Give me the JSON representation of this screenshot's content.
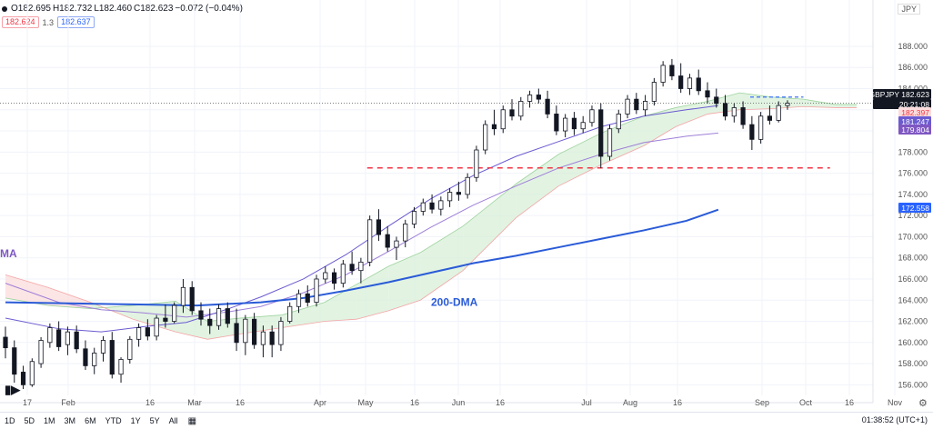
{
  "header": {
    "open": "O182.695",
    "high": "H182.732",
    "low": "L182.460",
    "close": "C182.623",
    "change": "−0.072 (−0.04%)",
    "currency": "JPY"
  },
  "indicators": {
    "red_value": "182.624",
    "mult": "1.3",
    "blue_value": "182.637"
  },
  "toolbar": {
    "timeframes": [
      "1D",
      "5D",
      "1M",
      "3M",
      "6M",
      "YTD",
      "1Y",
      "5Y",
      "All"
    ],
    "clock": "01:38:52 (UTC+1)"
  },
  "colors": {
    "up": "#ffffff",
    "down": "#131722",
    "cloud_bull": "#d8efd8",
    "cloud_bear": "#fbdcdc",
    "dma200": "#2a5bd7",
    "ma_fast": "#6b5bd0",
    "ma_slow": "#9e7fd8",
    "support": "#f23645"
  },
  "chart_data": {
    "type": "candlestick",
    "symbol": "GBPJPY",
    "y_ticks": [
      156,
      158,
      160,
      162,
      164,
      166,
      168,
      170,
      172,
      174,
      176,
      178,
      180,
      182,
      184,
      186,
      188
    ],
    "ylim": [
      155.0,
      189.8
    ],
    "x_labels": [
      "17",
      "Feb",
      "16",
      "Mar",
      "16",
      "Apr",
      "May",
      "16",
      "Jun",
      "16",
      "Jul",
      "Aug",
      "16",
      "Sep",
      "Oct",
      "16",
      "Nov",
      "16"
    ],
    "price_tags": [
      {
        "label": "GBPJPY",
        "value": "182.623"
      },
      {
        "label": "timer",
        "value": "20:21:08"
      },
      {
        "label": "ma_fast",
        "value": "182.397"
      },
      {
        "label": "ma_mid",
        "value": "181.247"
      },
      {
        "label": "ma_slow",
        "value": "179.804"
      },
      {
        "label": "dma200",
        "value": "172.558"
      }
    ],
    "annotations": [
      {
        "text": "200-DMA",
        "at_price": 163.8
      },
      {
        "text": "MA",
        "at_price": 168.4
      }
    ],
    "last_close": 182.623,
    "support_level": 176.5,
    "resistance_level": 183.2,
    "dma200_curve": [
      {
        "x": 0,
        "y": 163.8
      },
      {
        "x": 12,
        "y": 163.7
      },
      {
        "x": 24,
        "y": 163.6
      },
      {
        "x": 36,
        "y": 163.5
      },
      {
        "x": 48,
        "y": 163.8
      },
      {
        "x": 56,
        "y": 164.2
      },
      {
        "x": 64,
        "y": 164.9
      },
      {
        "x": 72,
        "y": 165.7
      },
      {
        "x": 80,
        "y": 166.6
      },
      {
        "x": 88,
        "y": 167.5
      },
      {
        "x": 96,
        "y": 168.2
      },
      {
        "x": 104,
        "y": 169.0
      },
      {
        "x": 112,
        "y": 169.8
      },
      {
        "x": 120,
        "y": 170.6
      },
      {
        "x": 128,
        "y": 171.5
      },
      {
        "x": 134,
        "y": 172.56
      }
    ],
    "ma_fast_curve": [
      {
        "x": 0,
        "y": 162.3
      },
      {
        "x": 10,
        "y": 161.3
      },
      {
        "x": 18,
        "y": 161.0
      },
      {
        "x": 26,
        "y": 161.5
      },
      {
        "x": 34,
        "y": 161.9
      },
      {
        "x": 42,
        "y": 163.2
      },
      {
        "x": 48,
        "y": 164.3
      },
      {
        "x": 56,
        "y": 166.0
      },
      {
        "x": 64,
        "y": 168.3
      },
      {
        "x": 72,
        "y": 171.0
      },
      {
        "x": 80,
        "y": 173.6
      },
      {
        "x": 88,
        "y": 175.8
      },
      {
        "x": 96,
        "y": 177.6
      },
      {
        "x": 104,
        "y": 179.0
      },
      {
        "x": 112,
        "y": 180.4
      },
      {
        "x": 120,
        "y": 181.4
      },
      {
        "x": 128,
        "y": 182.0
      },
      {
        "x": 134,
        "y": 182.4
      }
    ],
    "ma_slow_curve": [
      {
        "x": 0,
        "y": 165.6
      },
      {
        "x": 10,
        "y": 163.8
      },
      {
        "x": 18,
        "y": 163.1
      },
      {
        "x": 26,
        "y": 162.8
      },
      {
        "x": 34,
        "y": 162.4
      },
      {
        "x": 42,
        "y": 162.9
      },
      {
        "x": 48,
        "y": 163.4
      },
      {
        "x": 56,
        "y": 164.7
      },
      {
        "x": 64,
        "y": 166.4
      },
      {
        "x": 72,
        "y": 168.6
      },
      {
        "x": 80,
        "y": 170.9
      },
      {
        "x": 88,
        "y": 173.0
      },
      {
        "x": 96,
        "y": 174.8
      },
      {
        "x": 104,
        "y": 176.5
      },
      {
        "x": 112,
        "y": 177.8
      },
      {
        "x": 120,
        "y": 178.9
      },
      {
        "x": 128,
        "y": 179.5
      },
      {
        "x": 134,
        "y": 179.8
      }
    ],
    "cloud_a": [
      {
        "x": 0,
        "y": 164.2
      },
      {
        "x": 8,
        "y": 163.5
      },
      {
        "x": 16,
        "y": 163.2
      },
      {
        "x": 24,
        "y": 163.5
      },
      {
        "x": 32,
        "y": 163.9
      },
      {
        "x": 38,
        "y": 162.0
      },
      {
        "x": 44,
        "y": 162.3
      },
      {
        "x": 52,
        "y": 162.6
      },
      {
        "x": 60,
        "y": 163.8
      },
      {
        "x": 66,
        "y": 165.5
      },
      {
        "x": 72,
        "y": 167.2
      },
      {
        "x": 78,
        "y": 168.5
      },
      {
        "x": 86,
        "y": 171.0
      },
      {
        "x": 96,
        "y": 175.0
      },
      {
        "x": 104,
        "y": 177.8
      },
      {
        "x": 112,
        "y": 179.8
      },
      {
        "x": 120,
        "y": 181.4
      },
      {
        "x": 126,
        "y": 182.2
      },
      {
        "x": 132,
        "y": 182.8
      },
      {
        "x": 138,
        "y": 183.6
      },
      {
        "x": 144,
        "y": 183.2
      },
      {
        "x": 150,
        "y": 183.0
      },
      {
        "x": 156,
        "y": 182.5
      },
      {
        "x": 160,
        "y": 182.5
      }
    ],
    "cloud_b": [
      {
        "x": 0,
        "y": 166.4
      },
      {
        "x": 8,
        "y": 165.2
      },
      {
        "x": 16,
        "y": 163.8
      },
      {
        "x": 24,
        "y": 162.2
      },
      {
        "x": 32,
        "y": 161.0
      },
      {
        "x": 38,
        "y": 160.3
      },
      {
        "x": 44,
        "y": 160.8
      },
      {
        "x": 52,
        "y": 161.4
      },
      {
        "x": 60,
        "y": 162.0
      },
      {
        "x": 66,
        "y": 162.2
      },
      {
        "x": 72,
        "y": 163.0
      },
      {
        "x": 78,
        "y": 164.0
      },
      {
        "x": 86,
        "y": 166.8
      },
      {
        "x": 96,
        "y": 171.8
      },
      {
        "x": 104,
        "y": 174.8
      },
      {
        "x": 112,
        "y": 176.8
      },
      {
        "x": 120,
        "y": 178.6
      },
      {
        "x": 126,
        "y": 180.4
      },
      {
        "x": 132,
        "y": 181.6
      },
      {
        "x": 138,
        "y": 182.0
      },
      {
        "x": 144,
        "y": 182.1
      },
      {
        "x": 150,
        "y": 182.3
      },
      {
        "x": 156,
        "y": 182.2
      },
      {
        "x": 160,
        "y": 182.2
      }
    ],
    "candles": [
      {
        "o": 160.5,
        "h": 161.5,
        "l": 158.5,
        "c": 159.5
      },
      {
        "o": 159.5,
        "h": 160.2,
        "l": 156.2,
        "c": 157.0
      },
      {
        "o": 157.2,
        "h": 157.8,
        "l": 155.6,
        "c": 156.0
      },
      {
        "o": 156.0,
        "h": 158.5,
        "l": 155.8,
        "c": 158.2
      },
      {
        "o": 158.0,
        "h": 160.5,
        "l": 157.6,
        "c": 160.2
      },
      {
        "o": 160.0,
        "h": 161.8,
        "l": 159.5,
        "c": 161.4
      },
      {
        "o": 161.2,
        "h": 162.0,
        "l": 159.2,
        "c": 159.6
      },
      {
        "o": 159.8,
        "h": 161.5,
        "l": 158.8,
        "c": 161.0
      },
      {
        "o": 161.0,
        "h": 161.6,
        "l": 159.0,
        "c": 159.4
      },
      {
        "o": 159.4,
        "h": 160.2,
        "l": 157.4,
        "c": 157.8
      },
      {
        "o": 157.8,
        "h": 159.5,
        "l": 157.0,
        "c": 159.0
      },
      {
        "o": 159.0,
        "h": 160.6,
        "l": 158.2,
        "c": 160.2
      },
      {
        "o": 160.2,
        "h": 161.0,
        "l": 156.6,
        "c": 157.0
      },
      {
        "o": 157.0,
        "h": 158.6,
        "l": 156.2,
        "c": 158.4
      },
      {
        "o": 158.4,
        "h": 160.6,
        "l": 158.0,
        "c": 160.3
      },
      {
        "o": 160.3,
        "h": 161.8,
        "l": 159.6,
        "c": 161.4
      },
      {
        "o": 161.4,
        "h": 162.2,
        "l": 160.2,
        "c": 160.6
      },
      {
        "o": 160.6,
        "h": 162.6,
        "l": 160.2,
        "c": 162.3
      },
      {
        "o": 162.3,
        "h": 163.6,
        "l": 161.4,
        "c": 162.0
      },
      {
        "o": 162.0,
        "h": 163.8,
        "l": 161.8,
        "c": 163.5
      },
      {
        "o": 163.5,
        "h": 166.0,
        "l": 162.8,
        "c": 165.2
      },
      {
        "o": 165.2,
        "h": 165.8,
        "l": 162.6,
        "c": 163.0
      },
      {
        "o": 163.0,
        "h": 163.8,
        "l": 161.6,
        "c": 162.2
      },
      {
        "o": 162.2,
        "h": 163.2,
        "l": 160.8,
        "c": 161.6
      },
      {
        "o": 161.6,
        "h": 163.6,
        "l": 161.2,
        "c": 163.2
      },
      {
        "o": 163.2,
        "h": 163.8,
        "l": 161.4,
        "c": 161.8
      },
      {
        "o": 161.8,
        "h": 163.2,
        "l": 159.2,
        "c": 160.0
      },
      {
        "o": 160.0,
        "h": 162.6,
        "l": 158.8,
        "c": 162.2
      },
      {
        "o": 162.2,
        "h": 162.8,
        "l": 159.4,
        "c": 159.8
      },
      {
        "o": 159.8,
        "h": 161.6,
        "l": 158.6,
        "c": 161.0
      },
      {
        "o": 161.0,
        "h": 161.6,
        "l": 158.6,
        "c": 159.8
      },
      {
        "o": 159.8,
        "h": 162.4,
        "l": 159.2,
        "c": 162.0
      },
      {
        "o": 162.0,
        "h": 163.8,
        "l": 161.8,
        "c": 163.4
      },
      {
        "o": 163.4,
        "h": 165.0,
        "l": 162.8,
        "c": 164.6
      },
      {
        "o": 164.6,
        "h": 165.4,
        "l": 163.4,
        "c": 163.8
      },
      {
        "o": 163.8,
        "h": 166.4,
        "l": 163.4,
        "c": 166.0
      },
      {
        "o": 166.0,
        "h": 167.2,
        "l": 165.6,
        "c": 166.6
      },
      {
        "o": 166.6,
        "h": 167.0,
        "l": 165.0,
        "c": 165.6
      },
      {
        "o": 165.6,
        "h": 167.8,
        "l": 165.2,
        "c": 167.4
      },
      {
        "o": 167.4,
        "h": 168.6,
        "l": 166.4,
        "c": 166.8
      },
      {
        "o": 166.8,
        "h": 168.0,
        "l": 165.6,
        "c": 167.6
      },
      {
        "o": 167.6,
        "h": 172.0,
        "l": 167.2,
        "c": 171.6
      },
      {
        "o": 171.6,
        "h": 172.6,
        "l": 169.6,
        "c": 170.2
      },
      {
        "o": 170.2,
        "h": 171.0,
        "l": 168.6,
        "c": 169.0
      },
      {
        "o": 169.0,
        "h": 170.0,
        "l": 167.8,
        "c": 169.6
      },
      {
        "o": 169.6,
        "h": 171.6,
        "l": 169.0,
        "c": 171.2
      },
      {
        "o": 171.2,
        "h": 172.8,
        "l": 170.8,
        "c": 172.4
      },
      {
        "o": 172.4,
        "h": 173.6,
        "l": 172.0,
        "c": 173.2
      },
      {
        "o": 173.2,
        "h": 174.0,
        "l": 172.2,
        "c": 172.6
      },
      {
        "o": 172.6,
        "h": 173.8,
        "l": 172.0,
        "c": 173.4
      },
      {
        "o": 173.4,
        "h": 174.6,
        "l": 172.8,
        "c": 174.2
      },
      {
        "o": 174.2,
        "h": 175.2,
        "l": 173.4,
        "c": 174.0
      },
      {
        "o": 174.0,
        "h": 176.0,
        "l": 173.6,
        "c": 175.6
      },
      {
        "o": 175.6,
        "h": 178.6,
        "l": 175.2,
        "c": 178.2
      },
      {
        "o": 178.2,
        "h": 181.0,
        "l": 177.8,
        "c": 180.6
      },
      {
        "o": 180.6,
        "h": 182.0,
        "l": 179.6,
        "c": 180.2
      },
      {
        "o": 180.2,
        "h": 182.4,
        "l": 179.8,
        "c": 182.0
      },
      {
        "o": 182.0,
        "h": 183.0,
        "l": 181.0,
        "c": 181.4
      },
      {
        "o": 181.4,
        "h": 183.2,
        "l": 181.0,
        "c": 182.8
      },
      {
        "o": 182.8,
        "h": 183.8,
        "l": 182.2,
        "c": 183.4
      },
      {
        "o": 183.4,
        "h": 184.0,
        "l": 182.6,
        "c": 183.0
      },
      {
        "o": 183.0,
        "h": 183.8,
        "l": 181.2,
        "c": 181.6
      },
      {
        "o": 181.6,
        "h": 182.4,
        "l": 179.6,
        "c": 180.0
      },
      {
        "o": 180.0,
        "h": 181.6,
        "l": 179.4,
        "c": 181.2
      },
      {
        "o": 181.2,
        "h": 181.8,
        "l": 179.6,
        "c": 180.2
      },
      {
        "o": 180.2,
        "h": 181.4,
        "l": 179.8,
        "c": 180.8
      },
      {
        "o": 180.8,
        "h": 182.4,
        "l": 180.4,
        "c": 182.0
      },
      {
        "o": 182.0,
        "h": 182.6,
        "l": 176.5,
        "c": 177.6
      },
      {
        "o": 177.6,
        "h": 180.6,
        "l": 177.2,
        "c": 180.2
      },
      {
        "o": 180.2,
        "h": 182.0,
        "l": 179.8,
        "c": 181.6
      },
      {
        "o": 181.6,
        "h": 183.4,
        "l": 181.2,
        "c": 183.0
      },
      {
        "o": 183.0,
        "h": 183.6,
        "l": 181.6,
        "c": 182.0
      },
      {
        "o": 182.0,
        "h": 183.4,
        "l": 181.4,
        "c": 182.8
      },
      {
        "o": 182.8,
        "h": 185.0,
        "l": 182.4,
        "c": 184.6
      },
      {
        "o": 184.6,
        "h": 186.6,
        "l": 184.2,
        "c": 186.2
      },
      {
        "o": 186.2,
        "h": 186.8,
        "l": 184.8,
        "c": 185.2
      },
      {
        "o": 185.2,
        "h": 186.4,
        "l": 183.6,
        "c": 184.0
      },
      {
        "o": 184.0,
        "h": 185.4,
        "l": 183.4,
        "c": 185.0
      },
      {
        "o": 185.0,
        "h": 185.8,
        "l": 183.4,
        "c": 183.8
      },
      {
        "o": 183.8,
        "h": 184.6,
        "l": 182.6,
        "c": 183.2
      },
      {
        "o": 183.2,
        "h": 184.0,
        "l": 182.2,
        "c": 182.6
      },
      {
        "o": 182.6,
        "h": 183.4,
        "l": 181.0,
        "c": 181.4
      },
      {
        "o": 181.4,
        "h": 182.6,
        "l": 180.8,
        "c": 182.2
      },
      {
        "o": 182.2,
        "h": 182.8,
        "l": 180.2,
        "c": 180.6
      },
      {
        "o": 180.6,
        "h": 181.4,
        "l": 178.2,
        "c": 179.2
      },
      {
        "o": 179.2,
        "h": 181.8,
        "l": 178.8,
        "c": 181.4
      },
      {
        "o": 181.4,
        "h": 182.4,
        "l": 180.6,
        "c": 181.0
      },
      {
        "o": 181.0,
        "h": 182.8,
        "l": 180.8,
        "c": 182.4
      },
      {
        "o": 182.4,
        "h": 182.9,
        "l": 182.0,
        "c": 182.62
      }
    ]
  }
}
